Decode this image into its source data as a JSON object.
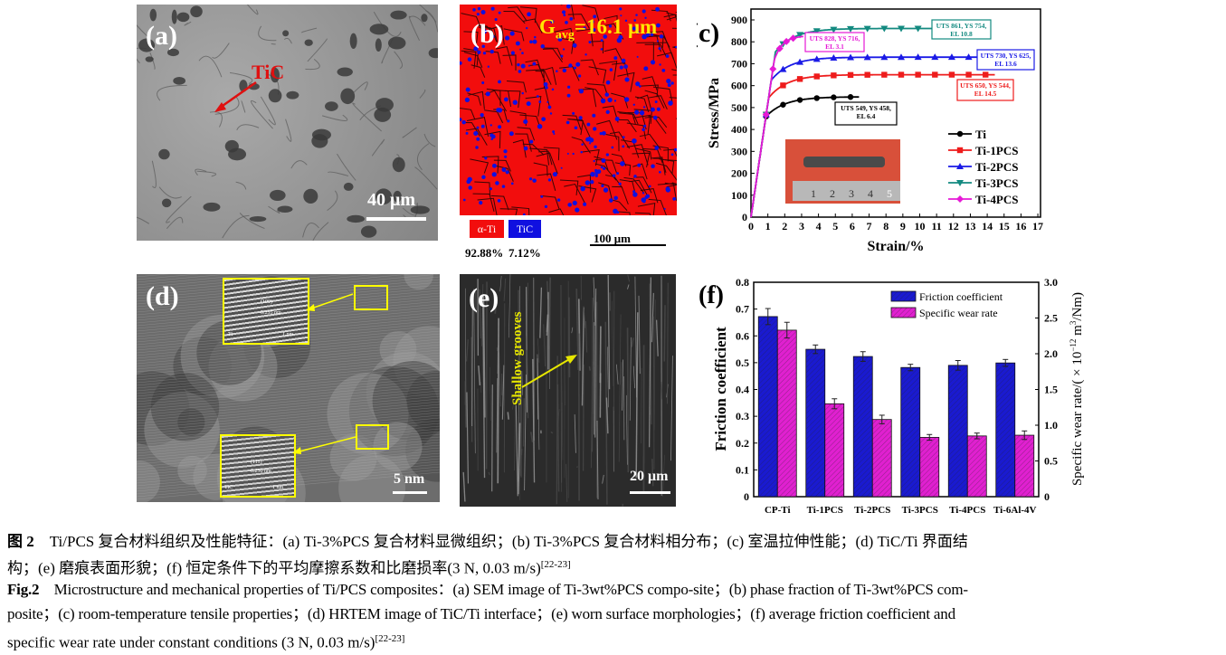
{
  "panels": {
    "a": {
      "label": "(a)",
      "annotation": "TiC",
      "scale_bar": "40 μm"
    },
    "b": {
      "label": "(b)",
      "grain_size": "G",
      "grain_size_sub": "avg",
      "grain_size_value": "=16.1 μm",
      "legend": [
        {
          "name": "α-Ti",
          "fraction": "92.88%",
          "color": "#f20d0d"
        },
        {
          "name": "TiC",
          "fraction": "7.12%",
          "color": "#1010e0"
        }
      ],
      "scale_bar": "100 μm"
    },
    "d": {
      "label": "(d)",
      "scale_bar": "5 nm",
      "inset_top": {
        "plane": "(100)",
        "spacing": "0.255 nm",
        "phase": "Ti",
        "scale": "1 nm"
      },
      "inset_bottom": {
        "plane": "(111)",
        "spacing": "0.250 nm",
        "phase": "TiC",
        "scale": "1 nm"
      }
    },
    "e": {
      "label": "(e)",
      "annotation": "Shallow grooves",
      "scale_bar": "20 μm"
    }
  },
  "chart_data": [
    {
      "panel_label": "(c)",
      "type": "line",
      "xlabel": "Strain/%",
      "ylabel": "Stress/MPa",
      "xlim": [
        0,
        17
      ],
      "ylim": [
        0,
        900
      ],
      "xticks": [
        0,
        1,
        2,
        3,
        4,
        5,
        6,
        7,
        8,
        9,
        10,
        11,
        12,
        13,
        14,
        15,
        16,
        17
      ],
      "yticks": [
        0,
        100,
        200,
        300,
        400,
        500,
        600,
        700,
        800,
        900
      ],
      "legend_position": "bottom-right",
      "inset_photo_ruler_labels": [
        "1",
        "2",
        "3",
        "4",
        "5"
      ],
      "series": [
        {
          "name": "Ti",
          "color": "#000000",
          "marker": "circle",
          "UTS": 549,
          "YS": 458,
          "EL": 6.4,
          "annotation": "UTS 549, YS 458, EL 6.4"
        },
        {
          "name": "Ti-1PCS",
          "color": "#ee1c1c",
          "marker": "square",
          "UTS": 650,
          "YS": 544,
          "EL": 14.5,
          "annotation": "UTS 650, YS 544, EL 14.5"
        },
        {
          "name": "Ti-2PCS",
          "color": "#1a1ae6",
          "marker": "triangle-up",
          "UTS": 730,
          "YS": 625,
          "EL": 13.6,
          "annotation": "UTS 730, YS 625, EL 13.6"
        },
        {
          "name": "Ti-3PCS",
          "color": "#138a80",
          "marker": "triangle-down",
          "UTS": 861,
          "YS": 754,
          "EL": 10.8,
          "annotation": "UTS 861, YS 754, EL 10.8"
        },
        {
          "name": "Ti-4PCS",
          "color": "#e619d6",
          "marker": "diamond",
          "UTS": 828,
          "YS": 716,
          "EL": 3.1,
          "annotation": "UTS 828, YS 716, EL 3.1"
        }
      ]
    },
    {
      "panel_label": "(f)",
      "type": "bar",
      "categories": [
        "CP-Ti",
        "Ti-1PCS",
        "Ti-2PCS",
        "Ti-3PCS",
        "Ti-4PCS",
        "Ti-6Al-4V"
      ],
      "ylabel": "Friction coefficient",
      "y2label": "Specific wear rate/( × 10",
      "y2label_exp": "−12",
      "y2label_unit": " m",
      "y2label_unit_exp": "3",
      "y2label_end": "/Nm)",
      "ylim": [
        0,
        0.8
      ],
      "y2lim": [
        0,
        3.0
      ],
      "yticks": [
        "0",
        "0.1",
        "0.2",
        "0.3",
        "0.4",
        "0.5",
        "0.6",
        "0.7",
        "0.8"
      ],
      "y2ticks": [
        "0",
        "0.5",
        "1.0",
        "1.5",
        "2.0",
        "2.5",
        "3.0"
      ],
      "legend_position": "top-right",
      "series": [
        {
          "name": "Friction coefficient",
          "axis": "left",
          "color": "#1a1ad0",
          "values": [
            0.672,
            0.55,
            0.523,
            0.482,
            0.49,
            0.499
          ],
          "errors": [
            0.03,
            0.016,
            0.018,
            0.012,
            0.018,
            0.013
          ]
        },
        {
          "name": "Specific wear rate",
          "axis": "right",
          "color": "#e020d0",
          "values": [
            2.33,
            1.3,
            1.08,
            0.83,
            0.85,
            0.86
          ],
          "errors": [
            0.11,
            0.07,
            0.06,
            0.04,
            0.04,
            0.06
          ]
        }
      ]
    }
  ],
  "caption": {
    "zh_label": "图 2",
    "zh_line1": "Ti/PCS 复合材料组织及性能特征：(a) Ti-3%PCS 复合材料显微组织；(b) Ti-3%PCS 复合材料相分布；(c) 室温拉伸性能；(d) TiC/Ti 界面结",
    "zh_line2": "构；(e) 磨痕表面形貌；(f) 恒定条件下的平均摩擦系数和比磨损率(3 N, 0.03 m/s)",
    "zh_ref": "[22-23]",
    "en_label": "Fig.2",
    "en_line1": "Microstructure and mechanical properties of Ti/PCS composites：(a) SEM image of Ti-3wt%PCS compo-site；(b) phase fraction of Ti-3wt%PCS com-",
    "en_line2": "posite；(c) room-temperature tensile properties；(d) HRTEM image of TiC/Ti interface；(e) worn surface morphologies；(f) average friction coefficient and",
    "en_line3": "specific wear rate under constant conditions (3 N, 0.03 m/s)",
    "en_ref": "[22-23]"
  }
}
